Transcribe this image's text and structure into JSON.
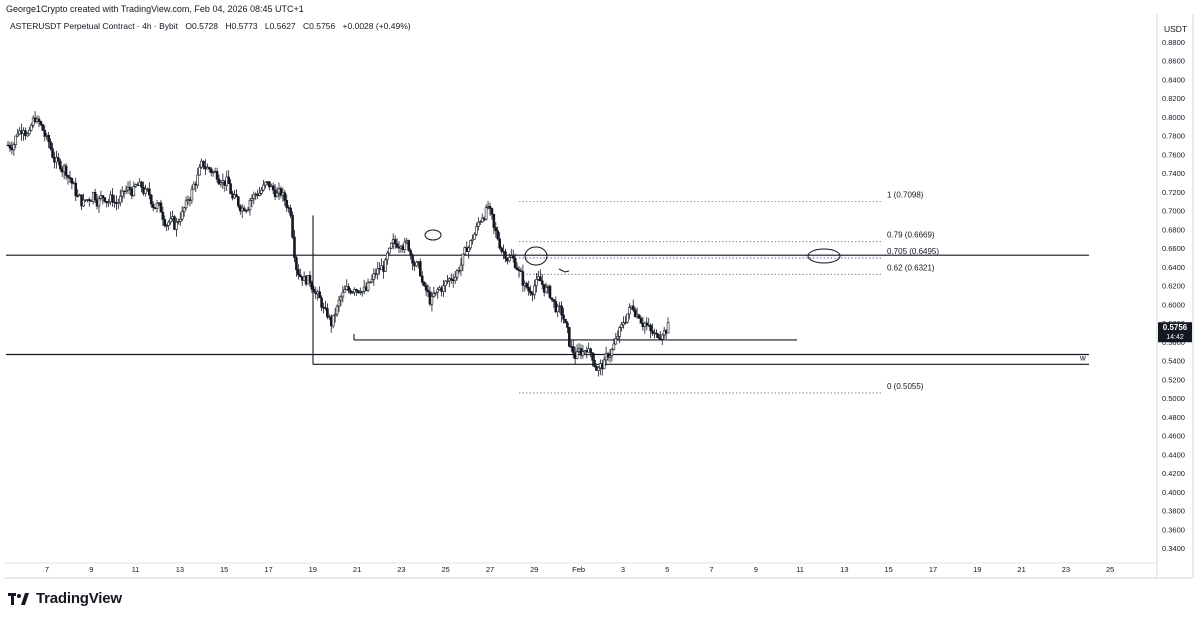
{
  "header": {
    "credit": "George1Crypto created with TradingView.com, Feb 04, 2026 08:45 UTC+1",
    "symbol": "ASTERUSDT Perpetual Contract · 4h · Bybit",
    "open": "O0.5728",
    "high": "H0.5773",
    "low": "L0.5627",
    "close": "C0.5756",
    "change": "+0.0028 (+0.49%)"
  },
  "price_axis": {
    "title": "USDT",
    "current_price": "0.5756",
    "countdown": "14:42"
  },
  "footer": {
    "brand": "TradingView"
  },
  "chart_data": {
    "type": "candlestick",
    "instrument": "ASTERUSDT Perpetual Contract",
    "interval": "4h",
    "exchange": "Bybit",
    "y_ticks": [
      "0.8800",
      "0.8600",
      "0.8400",
      "0.8200",
      "0.8000",
      "0.7800",
      "0.7600",
      "0.7400",
      "0.7200",
      "0.7000",
      "0.6800",
      "0.6600",
      "0.6400",
      "0.6200",
      "0.6000",
      "0.5800",
      "0.5600",
      "0.5400",
      "0.5200",
      "0.5000",
      "0.4800",
      "0.4600",
      "0.4400",
      "0.4200",
      "0.4000",
      "0.3800",
      "0.3600",
      "0.3400"
    ],
    "ylim": [
      0.328,
      0.893
    ],
    "x_ticks": [
      "7",
      "9",
      "11",
      "13",
      "15",
      "17",
      "19",
      "21",
      "23",
      "25",
      "27",
      "29",
      "Feb",
      "3",
      "5",
      "7",
      "9",
      "11",
      "13",
      "15",
      "17",
      "19",
      "21",
      "23",
      "25"
    ],
    "fibonacci": [
      {
        "label": "1 (0.7098)",
        "value": 0.7098,
        "color": "#131722"
      },
      {
        "label": "0.79 (0.6669)",
        "value": 0.6669,
        "color": "#131722"
      },
      {
        "label": "0.705 (0.6495)",
        "value": 0.6495,
        "color": "#2b2bd9"
      },
      {
        "label": "0.62 (0.6321)",
        "value": 0.6321,
        "color": "#131722"
      },
      {
        "label": "0 (0.5055)",
        "value": 0.5055,
        "color": "#131722"
      }
    ],
    "horizontal_levels": [
      0.6525,
      0.5465
    ],
    "drawn_lines": [
      0.562,
      0.536
    ],
    "level_tag": "w",
    "series_close_path": [
      0.77,
      0.785,
      0.79,
      0.78,
      0.8,
      0.79,
      0.775,
      0.76,
      0.75,
      0.745,
      0.735,
      0.72,
      0.71,
      0.712,
      0.718,
      0.71,
      0.715,
      0.712,
      0.708,
      0.715,
      0.722,
      0.72,
      0.725,
      0.718,
      0.712,
      0.705,
      0.695,
      0.688,
      0.685,
      0.695,
      0.705,
      0.72,
      0.735,
      0.75,
      0.745,
      0.74,
      0.735,
      0.73,
      0.712,
      0.708,
      0.705,
      0.712,
      0.718,
      0.722,
      0.728,
      0.722,
      0.718,
      0.712,
      0.7,
      0.64,
      0.63,
      0.625,
      0.618,
      0.605,
      0.59,
      0.58,
      0.595,
      0.61,
      0.615,
      0.62,
      0.618,
      0.615,
      0.625,
      0.635,
      0.64,
      0.655,
      0.665,
      0.668,
      0.665,
      0.65,
      0.64,
      0.615,
      0.605,
      0.61,
      0.618,
      0.625,
      0.63,
      0.64,
      0.655,
      0.665,
      0.68,
      0.695,
      0.705,
      0.68,
      0.665,
      0.655,
      0.65,
      0.64,
      0.625,
      0.615,
      0.62,
      0.625,
      0.615,
      0.605,
      0.592,
      0.585,
      0.56,
      0.545,
      0.55,
      0.555,
      0.545,
      0.53,
      0.535,
      0.548,
      0.56,
      0.575,
      0.59,
      0.598,
      0.59,
      0.58,
      0.57,
      0.565,
      0.572,
      0.5756
    ]
  }
}
